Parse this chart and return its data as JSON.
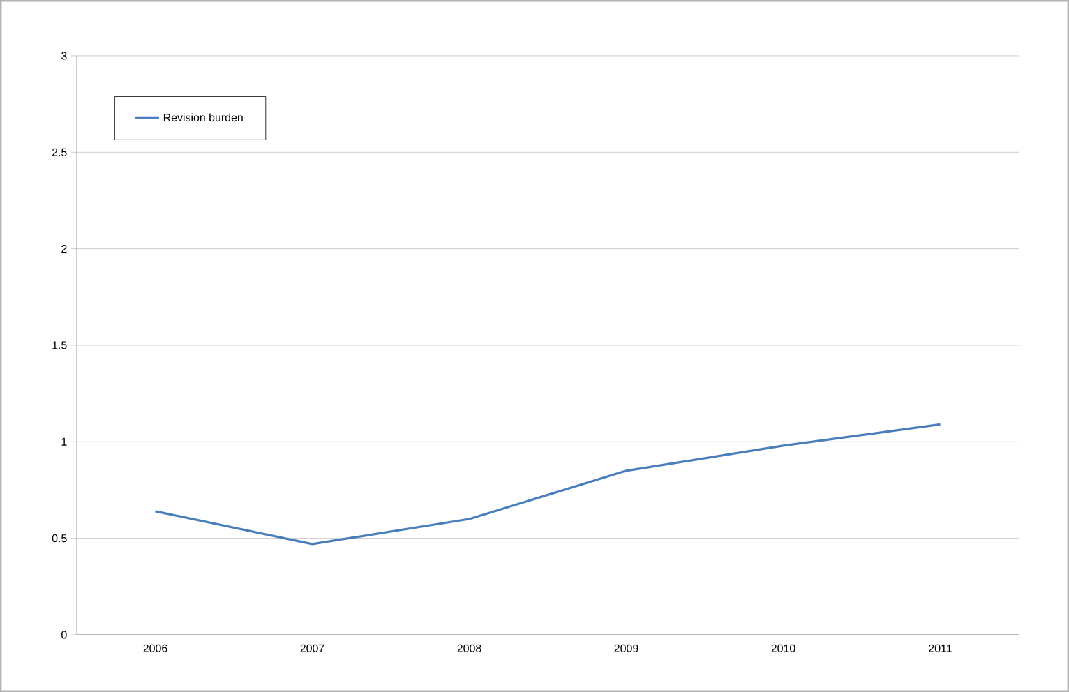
{
  "chart_data": {
    "type": "line",
    "categories": [
      "2006",
      "2007",
      "2008",
      "2009",
      "2010",
      "2011"
    ],
    "series": [
      {
        "name": "Revision burden",
        "color": "#4a7ebb",
        "values": [
          0.64,
          0.47,
          0.6,
          0.85,
          0.98,
          1.09
        ]
      }
    ],
    "ylim": [
      0,
      3
    ],
    "yticks": [
      0,
      0.5,
      1,
      1.5,
      2,
      2.5,
      3
    ],
    "grid": "y",
    "legend": "top left",
    "marker": "none",
    "line_style": "solid"
  }
}
